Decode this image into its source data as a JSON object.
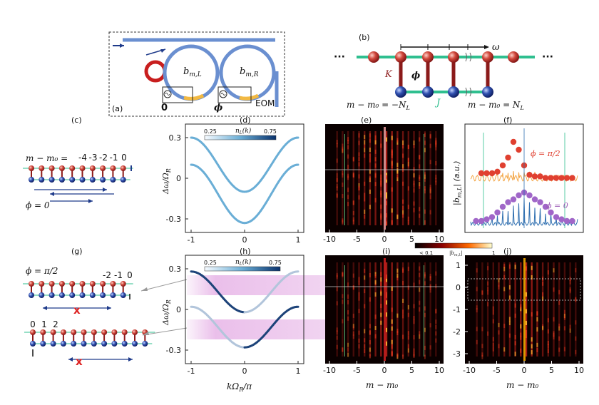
{
  "panels": {
    "a": {
      "label": "(a)",
      "mode_left": "b",
      "mode_left_sub": "m,L",
      "mode_right": "b",
      "mode_right_sub": "m,R",
      "phase_left": "0",
      "phase_right": "ϕ",
      "eom": "EOM"
    },
    "b": {
      "label": "(b)",
      "omega": "ω",
      "K": "K",
      "phi": "ϕ",
      "J": "J",
      "left_edge": "m − m₀ = −N",
      "right_edge": "m − m₀ = N",
      "edge_sub": "L",
      "dots": "···"
    },
    "c": {
      "label": "(c)",
      "index_header": "m − m₀ =",
      "indices": [
        "-4",
        "-3",
        "-2",
        "-1",
        "0"
      ],
      "phase": "ϕ = 0"
    },
    "d": {
      "label": "(d)",
      "ylabel": "Δω/Ω",
      "ylabel_sub": "R",
      "colorbar_label": "n",
      "colorbar_sub": "L",
      "colorbar_arg": "(k)",
      "cb_min": "0.25",
      "cb_max": "0.75"
    },
    "e": {
      "label": "(e)"
    },
    "f": {
      "label": "(f)",
      "ylabel": "|b",
      "ylabel_sub": "m,L",
      "ylabel_tail": "| (a.u.)",
      "phi_top": "ϕ = π/2",
      "phi_bottom": "ϕ = 0"
    },
    "g": {
      "label": "(g)",
      "phase": "ϕ = π/2",
      "top_indices": [
        "-2",
        "-1",
        "0"
      ],
      "bottom_indices": [
        "0",
        "1",
        "2"
      ],
      "cross": "x"
    },
    "h": {
      "label": "(h)",
      "ylabel": "Δω/Ω",
      "ylabel_sub": "R",
      "xlabel": "kΩ",
      "xlabel_sub": "R",
      "xlabel_tail": "/π",
      "colorbar_label": "n",
      "colorbar_sub": "L",
      "colorbar_arg": "(k)",
      "cb_min": "0.25",
      "cb_max": "0.75"
    },
    "i": {
      "label": "(i)",
      "xlabel": "m − m₀"
    },
    "j": {
      "label": "(j)",
      "xlabel": "m − m₀"
    },
    "shared_colorbar": {
      "min": "< 0.1",
      "label": "|b",
      "label_sub": "m,L",
      "label_tail": "|",
      "max": "1"
    }
  },
  "axes": {
    "band_yticks": [
      "0.3",
      "0",
      "-0.3"
    ],
    "band_xticks": [
      "-1",
      "0",
      "1"
    ],
    "map_xticks": [
      "-10",
      "-5",
      "0",
      "5",
      "10"
    ],
    "j_yticks": [
      "1",
      "0",
      "-1",
      "-2",
      "-3"
    ]
  },
  "colors": {
    "ring": "#6a8fd0",
    "heater": "#c81e1e",
    "bus": "#5b8fd4",
    "site_red": "#c0392b",
    "site_blue": "#1e3a8a",
    "bond": "#8b1a1a",
    "coupler": "#2fbf8f",
    "band": "#6aaed6",
    "band_dark": "#08306b",
    "shade": "#e9bde9",
    "f_top": "#e04030",
    "f_top_line": "#f4a84a",
    "f_bot": "#9b59b6",
    "f_bot_line": "#2f6fb0"
  },
  "chart_data": [
    {
      "type": "line",
      "panel": "d",
      "x_range": [
        -1,
        1
      ],
      "ylim": [
        -0.4,
        0.4
      ],
      "series": [
        {
          "values_at": {
            "-1": 0.3,
            "0": -0.1,
            "1": 0.3
          }
        },
        {
          "values_at": {
            "-1": 0.1,
            "0": -0.33,
            "1": 0.1
          }
        }
      ]
    },
    {
      "type": "line",
      "panel": "h",
      "x_range": [
        -1,
        1
      ],
      "ylim": [
        -0.4,
        0.4
      ],
      "series": [
        {
          "values_at": {
            "-1": 0.28,
            "0": -0.02,
            "1": 0.28
          }
        },
        {
          "values_at": {
            "-1": 0.02,
            "0": -0.28,
            "1": 0.02
          }
        }
      ]
    },
    {
      "type": "heatmap",
      "panel": "e",
      "x_range": [
        -10,
        10
      ]
    },
    {
      "type": "heatmap",
      "panel": "i",
      "x_range": [
        -10,
        10
      ]
    },
    {
      "type": "heatmap",
      "panel": "j",
      "x_range": [
        -10,
        10
      ],
      "y_range": [
        -3,
        1
      ]
    },
    {
      "type": "scatter",
      "panel": "f",
      "series": [
        {
          "name": "ϕ = π/2",
          "x": [
            -8,
            -7,
            -6,
            -5,
            -4,
            -3,
            -2,
            -1,
            0,
            1,
            2,
            3,
            4,
            5,
            6,
            7,
            8,
            9
          ],
          "y": [
            0.75,
            0.75,
            0.75,
            0.76,
            0.8,
            0.85,
            0.95,
            0.9,
            0.8,
            0.74,
            0.73,
            0.73,
            0.72,
            0.72,
            0.72,
            0.72,
            0.72,
            0.72
          ]
        },
        {
          "name": "ϕ = 0",
          "x": [
            -9,
            -8,
            -7,
            -6,
            -5,
            -4,
            -3,
            -2,
            -1,
            0,
            1,
            2,
            3,
            4,
            5,
            6,
            7,
            8,
            9
          ],
          "y": [
            0.05,
            0.05,
            0.08,
            0.12,
            0.2,
            0.3,
            0.38,
            0.43,
            0.5,
            0.55,
            0.5,
            0.43,
            0.38,
            0.3,
            0.2,
            0.12,
            0.08,
            0.05,
            0.05
          ]
        }
      ]
    }
  ]
}
